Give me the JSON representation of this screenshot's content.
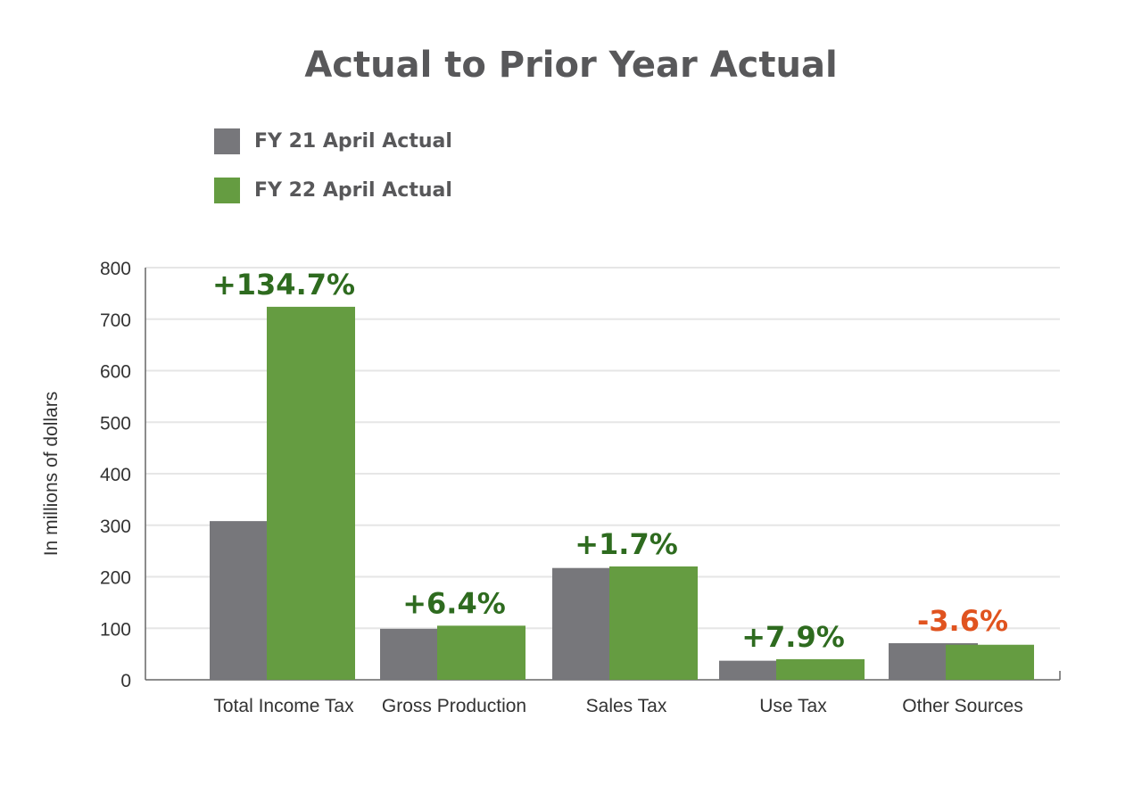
{
  "chart_data": {
    "type": "bar",
    "title": "Actual to Prior Year Actual",
    "ylabel": "In millions of dollars",
    "xlabel": "",
    "ylim": [
      0,
      800
    ],
    "yticks": [
      "0",
      "100",
      "200",
      "300",
      "400",
      "500",
      "600",
      "700",
      "800"
    ],
    "grid": true,
    "legend_position": "top-left",
    "categories": [
      "Total Income Tax",
      "Gross Production",
      "Sales Tax",
      "Use Tax",
      "Other Sources"
    ],
    "series": [
      {
        "name": "FY 21 April Actual",
        "color": "#77777b",
        "values": [
          308,
          99,
          217,
          37,
          71
        ]
      },
      {
        "name": "FY 22 April Actual",
        "color": "#659c41",
        "values": [
          724,
          105,
          220,
          40,
          68
        ]
      }
    ],
    "annotations": [
      {
        "text": "+134.7%",
        "color": "#2e6b1f"
      },
      {
        "text": "+6.4%",
        "color": "#2e6b1f"
      },
      {
        "text": "+1.7%",
        "color": "#2e6b1f"
      },
      {
        "text": "+7.9%",
        "color": "#2e6b1f"
      },
      {
        "text": "-3.6%",
        "color": "#e0531f"
      }
    ]
  }
}
